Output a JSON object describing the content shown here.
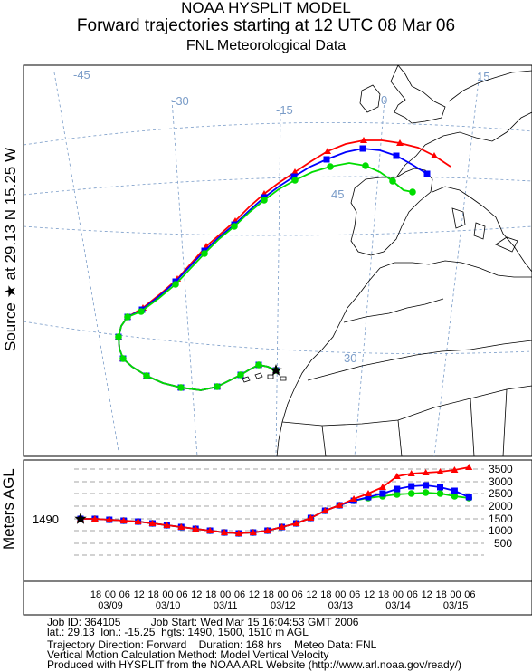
{
  "header": {
    "line1": "NOAA HYSPLIT MODEL",
    "line2": "Forward trajectories starting at 12 UTC 08 Mar 06",
    "line3": "FNL  Meteorological Data"
  },
  "side_labels": {
    "source": "Source ★ at   29.13 N   15.25 W",
    "height": "Meters AGL"
  },
  "map": {
    "longitude_labels": [
      "-45",
      "-30",
      "-15",
      "0",
      "15"
    ],
    "latitude_labels": [
      "45",
      "30"
    ],
    "source_marker": "star-icon",
    "colors": {
      "grid": "#7a9cc8",
      "coast": "#000000",
      "red": "#ff0000",
      "blue": "#0000ff",
      "green": "#00dd00"
    }
  },
  "height_panel": {
    "start_height_label": "1490",
    "height_ticks": [
      "3500",
      "3000",
      "2500",
      "2000",
      "1500",
      "1000",
      "500"
    ]
  },
  "time_axis": {
    "hours": [
      "18",
      "00",
      "06",
      "12",
      "18",
      "00",
      "06",
      "12",
      "18",
      "00",
      "06",
      "12",
      "18",
      "00",
      "06",
      "12",
      "18",
      "00",
      "06",
      "12",
      "18",
      "00",
      "06",
      "12",
      "18",
      "00",
      "06"
    ],
    "dates": [
      "03/09",
      "03/10",
      "03/11",
      "03/12",
      "03/13",
      "03/14",
      "03/15"
    ]
  },
  "footer": {
    "line1": "Job ID: 364105          Job Start: Wed Mar 15 16:04:53 GMT 2006",
    "line2": "lat.: 29.13  lon.: -15.25  hgts: 1490, 1500, 1510 m AGL",
    "line3": "Trajectory Direction: Forward    Duration: 168 hrs    Meteo Data: FNL",
    "line4": "Vertical Motion Calculation Method: Model Vertical Velocity",
    "line5": "Produced with HYSPLIT from the NOAA ARL Website (http://www.arl.noaa.gov/ready/)"
  }
}
